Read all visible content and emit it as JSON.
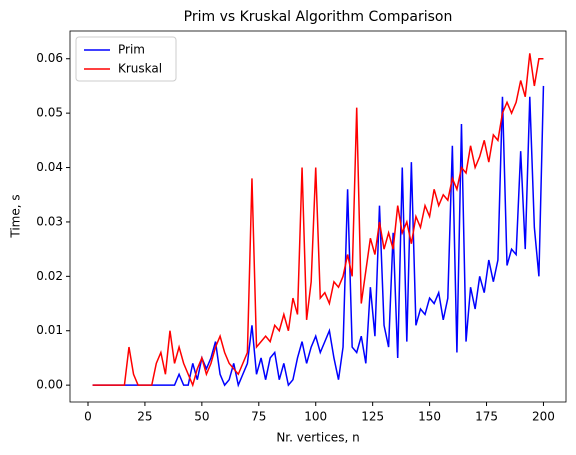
{
  "chart_data": {
    "type": "line",
    "title": "Prim vs Kruskal Algorithm Comparison",
    "xlabel": "Nr. vertices, n",
    "ylabel": "Time, s",
    "x": [
      2,
      4,
      6,
      8,
      10,
      12,
      14,
      16,
      18,
      20,
      22,
      24,
      26,
      28,
      30,
      32,
      34,
      36,
      38,
      40,
      42,
      44,
      46,
      48,
      50,
      52,
      54,
      56,
      58,
      60,
      62,
      64,
      66,
      68,
      70,
      72,
      74,
      76,
      78,
      80,
      82,
      84,
      86,
      88,
      90,
      92,
      94,
      96,
      98,
      100,
      102,
      104,
      106,
      108,
      110,
      112,
      114,
      116,
      118,
      120,
      122,
      124,
      126,
      128,
      130,
      132,
      134,
      136,
      138,
      140,
      142,
      144,
      146,
      148,
      150,
      152,
      154,
      156,
      158,
      160,
      162,
      164,
      166,
      168,
      170,
      172,
      174,
      176,
      178,
      180,
      182,
      184,
      186,
      188,
      190,
      192,
      194,
      196,
      198,
      200
    ],
    "series": [
      {
        "name": "Prim",
        "color": "#0000ff",
        "values": [
          0,
          0,
          0,
          0,
          0,
          0,
          0,
          0,
          0,
          0,
          0,
          0,
          0,
          0,
          0,
          0,
          0,
          0,
          0,
          0.002,
          0,
          0,
          0.004,
          0.001,
          0.005,
          0.003,
          0.005,
          0.008,
          0.002,
          0,
          0.001,
          0.004,
          0,
          0.002,
          0.004,
          0.011,
          0.002,
          0.005,
          0.001,
          0.005,
          0.006,
          0.001,
          0.004,
          0,
          0.001,
          0.005,
          0.008,
          0.004,
          0.007,
          0.009,
          0.006,
          0.008,
          0.01,
          0.005,
          0.001,
          0.007,
          0.036,
          0.007,
          0.006,
          0.009,
          0.004,
          0.018,
          0.009,
          0.033,
          0.011,
          0.007,
          0.028,
          0.005,
          0.04,
          0.008,
          0.041,
          0.011,
          0.014,
          0.013,
          0.016,
          0.015,
          0.017,
          0.012,
          0.016,
          0.044,
          0.006,
          0.048,
          0.008,
          0.018,
          0.014,
          0.02,
          0.017,
          0.023,
          0.019,
          0.023,
          0.053,
          0.022,
          0.025,
          0.024,
          0.043,
          0.025,
          0.053,
          0.029,
          0.02,
          0.055
        ]
      },
      {
        "name": "Kruskal",
        "color": "#ff0000",
        "values": [
          0,
          0,
          0,
          0,
          0,
          0,
          0,
          0,
          0.007,
          0.002,
          0,
          0,
          0,
          0,
          0.004,
          0.006,
          0.002,
          0.01,
          0.004,
          0.007,
          0.004,
          0.002,
          0,
          0.003,
          0.005,
          0.002,
          0.004,
          0.007,
          0.009,
          0.006,
          0.004,
          0.003,
          0.002,
          0.004,
          0.006,
          0.038,
          0.007,
          0.008,
          0.009,
          0.008,
          0.011,
          0.01,
          0.013,
          0.01,
          0.016,
          0.013,
          0.04,
          0.012,
          0.019,
          0.04,
          0.016,
          0.017,
          0.015,
          0.019,
          0.018,
          0.02,
          0.024,
          0.02,
          0.051,
          0.015,
          0.021,
          0.027,
          0.024,
          0.03,
          0.025,
          0.028,
          0.025,
          0.033,
          0.028,
          0.03,
          0.026,
          0.031,
          0.029,
          0.033,
          0.031,
          0.036,
          0.033,
          0.035,
          0.034,
          0.038,
          0.036,
          0.04,
          0.039,
          0.044,
          0.04,
          0.042,
          0.045,
          0.041,
          0.046,
          0.045,
          0.05,
          0.052,
          0.05,
          0.052,
          0.056,
          0.053,
          0.061,
          0.055,
          0.06,
          0.06
        ]
      }
    ],
    "xlim": [
      -7.9,
      209.9
    ],
    "xticks": [
      0,
      25,
      50,
      75,
      100,
      125,
      150,
      175,
      200
    ],
    "ylim": [
      -0.0031,
      0.0651
    ],
    "yticks": [
      {
        "value": 0,
        "label": "0.00"
      },
      {
        "value": 0.01,
        "label": "0.01"
      },
      {
        "value": 0.02,
        "label": "0.02"
      },
      {
        "value": 0.03,
        "label": "0.03"
      },
      {
        "value": 0.04,
        "label": "0.04"
      },
      {
        "value": 0.05,
        "label": "0.05"
      },
      {
        "value": 0.06,
        "label": "0.06"
      }
    ],
    "legend": "upper left",
    "grid": false
  }
}
